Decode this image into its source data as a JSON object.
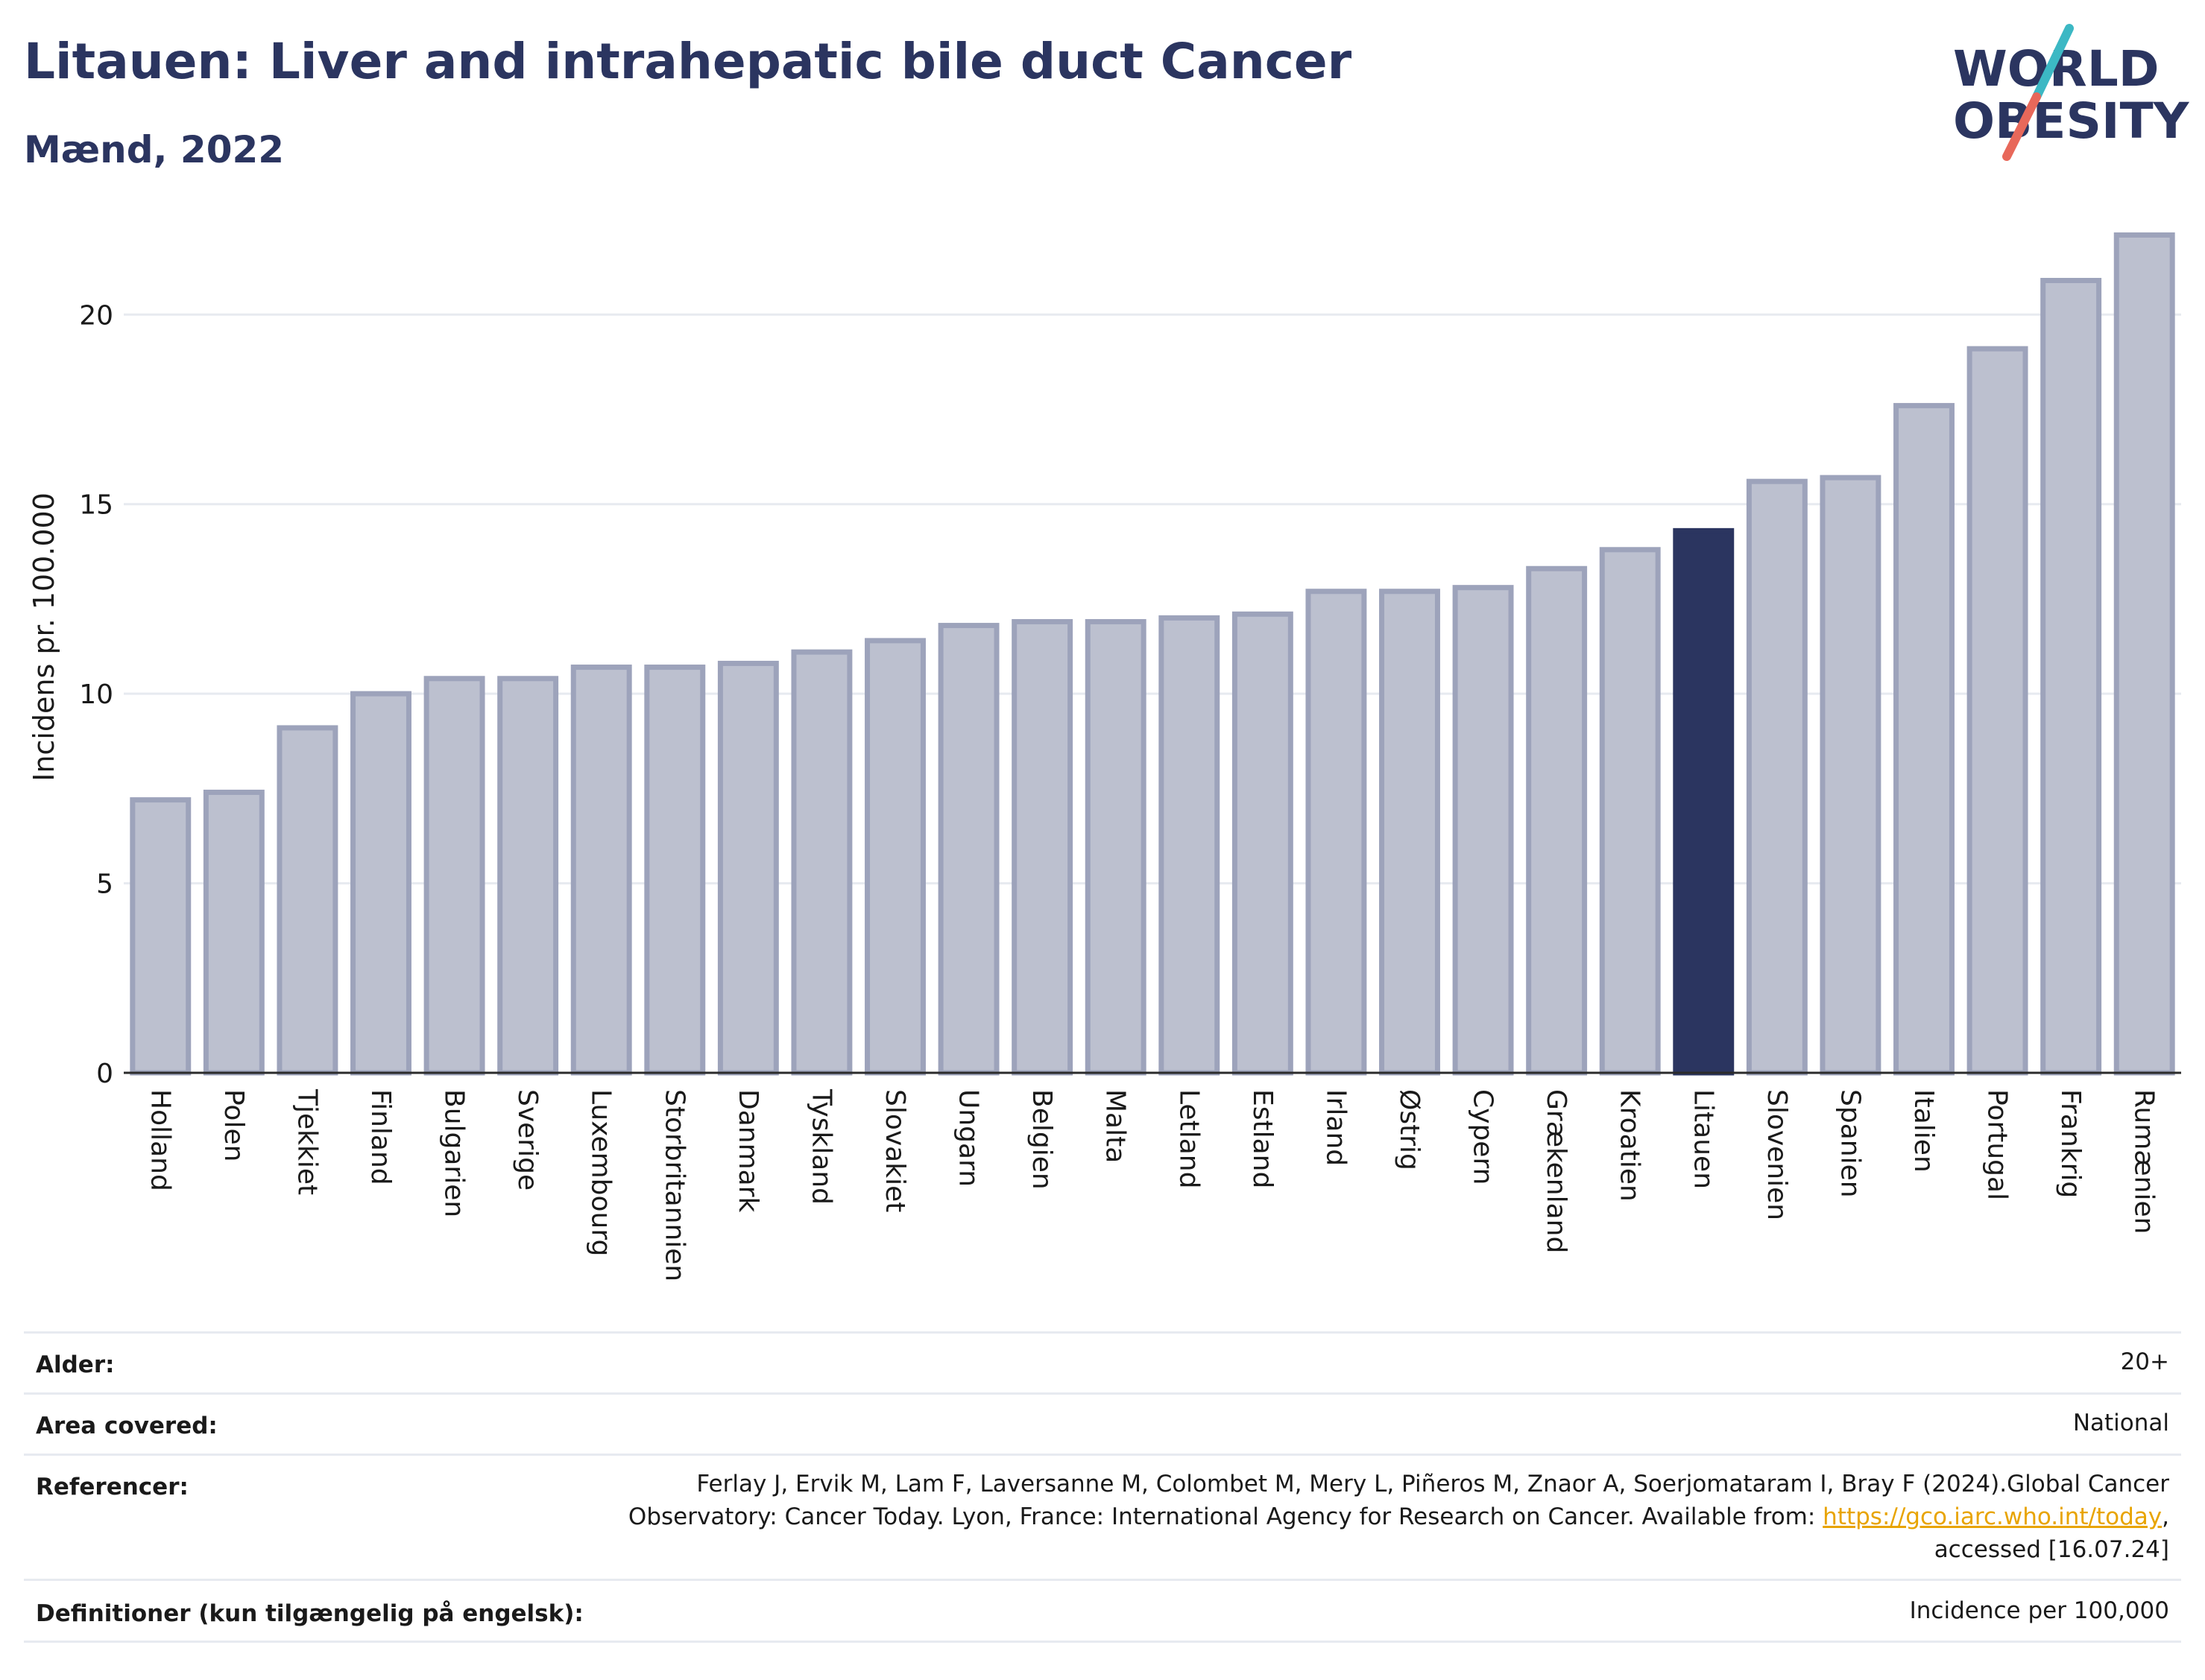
{
  "header": {
    "title": "Litauen: Liver and intrahepatic bile duct Cancer",
    "subtitle": "Mænd, 2022"
  },
  "logo": {
    "line1": "WORLD",
    "line2": "OBESITY",
    "colors": {
      "text": "#2b3560",
      "slash_teal": "#3cb8c4",
      "slash_red": "#e8685a"
    }
  },
  "colors": {
    "bar_fill": "#bcc0cf",
    "bar_stroke": "#9da3bb",
    "highlight": "#2b3560",
    "grid": "#e7eaf0",
    "axis_text": "#1a1a1a"
  },
  "chart_data": {
    "type": "bar",
    "ylabel": "Incidens pr. 100.000",
    "xlabel": "",
    "ylim": [
      0,
      22.6
    ],
    "yticks": [
      0,
      5,
      10,
      15,
      20
    ],
    "grid": true,
    "highlight": "Litauen",
    "categories": [
      "Holland",
      "Polen",
      "Tjekkiet",
      "Finland",
      "Bulgarien",
      "Sverige",
      "Luxembourg",
      "Storbritannien",
      "Danmark",
      "Tyskland",
      "Slovakiet",
      "Ungarn",
      "Belgien",
      "Malta",
      "Letland",
      "Estland",
      "Irland",
      "Østrig",
      "Cypern",
      "Grækenland",
      "Kroatien",
      "Litauen",
      "Slovenien",
      "Spanien",
      "Italien",
      "Portugal",
      "Frankrig",
      "Rumænien"
    ],
    "values": [
      7.2,
      7.4,
      9.1,
      10.0,
      10.4,
      10.4,
      10.7,
      10.7,
      10.8,
      11.1,
      11.4,
      11.8,
      11.9,
      11.9,
      12.0,
      12.1,
      12.7,
      12.7,
      12.8,
      13.3,
      13.8,
      14.3,
      15.6,
      15.7,
      17.6,
      19.1,
      20.9,
      22.1
    ]
  },
  "meta": {
    "rows": [
      {
        "key": "Alder:",
        "value": "20+"
      },
      {
        "key": "Area covered:",
        "value": "National"
      },
      {
        "key": "Referencer:",
        "value_line1": "Ferlay J, Ervik M, Lam F, Laversanne M, Colombet M, Mery L, Piñeros M, Znaor A, Soerjomataram I, Bray F (2024).Global Cancer",
        "value_line2_pre": "Observatory: Cancer Today. Lyon, France: International Agency for Research on Cancer. Available from: ",
        "value_link": "https://gco.iarc.who.int/today",
        "value_line2_post": ",",
        "value_line3": "accessed [16.07.24]"
      },
      {
        "key": "Definitioner (kun tilgængelig på engelsk):",
        "value": "Incidence per 100,000"
      }
    ]
  }
}
